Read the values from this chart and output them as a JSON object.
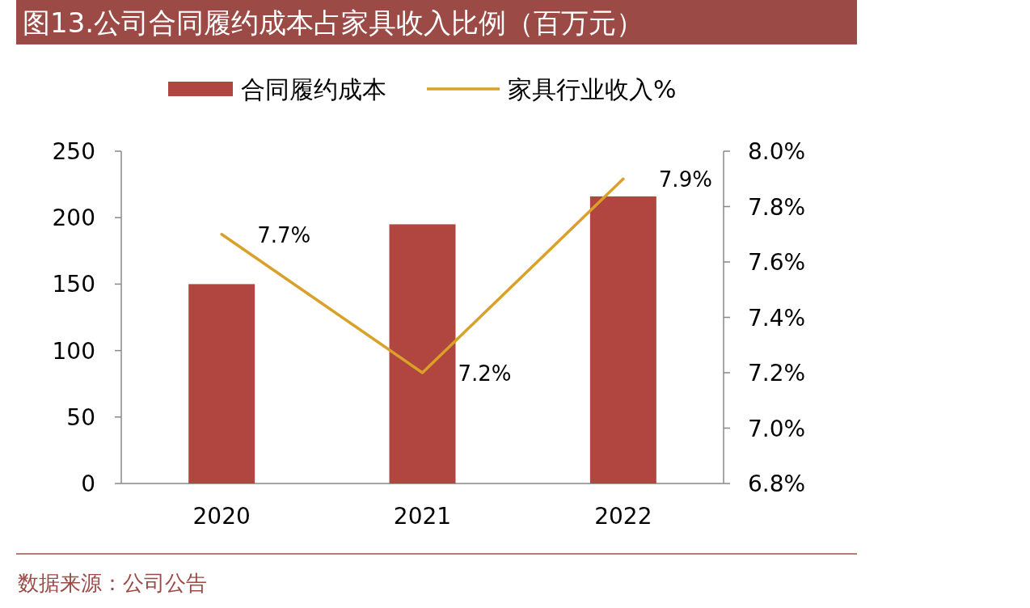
{
  "chart_data": {
    "type": "bar",
    "title": "图13.公司合同履约成本占家具收入比例（百万元）",
    "categories": [
      "2020",
      "2021",
      "2022"
    ],
    "series": [
      {
        "name": "合同履约成本",
        "color": "#b0463f",
        "values": [
          150,
          195,
          216
        ]
      },
      {
        "name": "家具行业收入%",
        "type": "line",
        "axis": "y2",
        "color": "#d9a02a",
        "values": [
          7.7,
          7.2,
          7.9
        ],
        "value_labels": [
          "7.7%",
          "7.2%",
          "7.9%"
        ]
      }
    ],
    "ylim": [
      0,
      250
    ],
    "yticks": [
      0,
      50,
      100,
      150,
      200,
      250
    ],
    "y2lim": [
      6.8,
      8.0
    ],
    "y2ticks": [
      {
        "value": 6.8,
        "label": "6.8%"
      },
      {
        "value": 7.0,
        "label": "7.0%"
      },
      {
        "value": 7.2,
        "label": "7.2%"
      },
      {
        "value": 7.4,
        "label": "7.4%"
      },
      {
        "value": 7.6,
        "label": "7.6%"
      },
      {
        "value": 7.8,
        "label": "7.8%"
      },
      {
        "value": 8.0,
        "label": "8.0%"
      }
    ],
    "legend": "top",
    "grid": false,
    "annotations": [
      "数据来源：公司公告"
    ]
  }
}
